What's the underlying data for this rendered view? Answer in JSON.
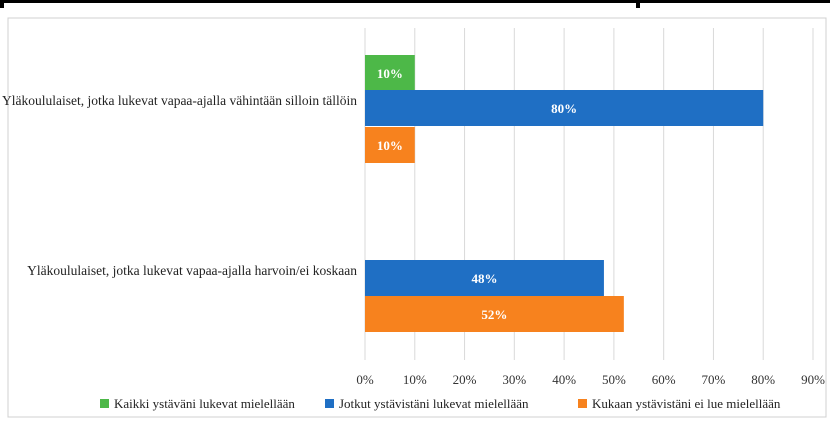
{
  "chart_data": {
    "type": "bar",
    "orientation": "horizontal",
    "categories": [
      "Yläkoululaiset, jotka lukevat vapaa-ajalla vähintään silloin tällöin",
      "Yläkoululaiset, jotka lukevat vapaa-ajalla harvoin/ei koskaan"
    ],
    "series": [
      {
        "name": "Kaikki ystäväni lukevat mielellään",
        "color": "#4db848",
        "values": [
          10,
          null
        ],
        "labels": [
          "10%",
          ""
        ]
      },
      {
        "name": "Jotkut ystävistäni lukevat mielellään",
        "color": "#1f6fc4",
        "values": [
          80,
          48
        ],
        "labels": [
          "80%",
          "48%"
        ]
      },
      {
        "name": "Kukaan ystävistäni ei lue mielellään",
        "color": "#f7821e",
        "values": [
          10,
          52
        ],
        "labels": [
          "10%",
          "52%"
        ]
      }
    ],
    "xlim": [
      0,
      90
    ],
    "xticks": [
      0,
      10,
      20,
      30,
      40,
      50,
      60,
      70,
      80,
      90
    ],
    "xtick_labels": [
      "0%",
      "10%",
      "20%",
      "30%",
      "40%",
      "50%",
      "60%",
      "70%",
      "80%",
      "90%"
    ],
    "grid": true,
    "legend_position": "bottom",
    "title": "",
    "xlabel": "",
    "ylabel": ""
  }
}
